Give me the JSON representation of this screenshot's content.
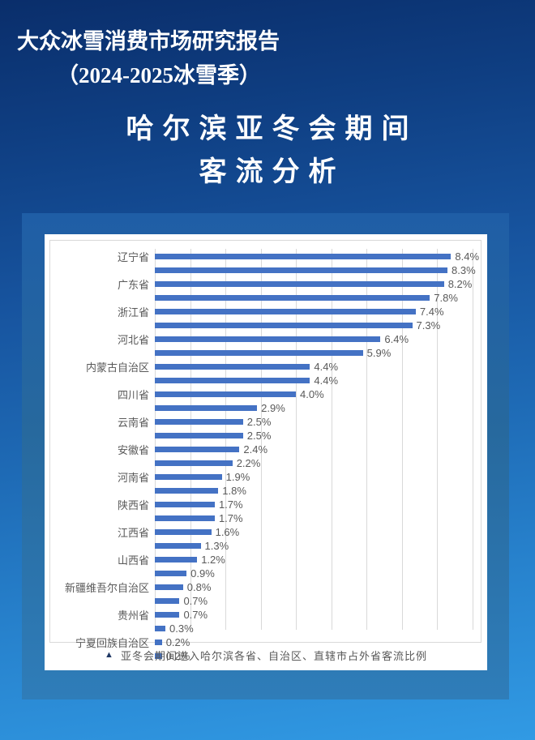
{
  "header": {
    "report_title": "大众冰雪消费市场研究报告",
    "report_subtitle": "（2024-2025冰雪季）",
    "main_title_line1": "哈尔滨亚冬会期间",
    "main_title_line2": "客流分析"
  },
  "chart_data": {
    "type": "bar",
    "orientation": "horizontal",
    "caption_marker": "▲",
    "caption": "亚冬会期间进入哈尔滨各省、自治区、直辖市占外省客流比例",
    "value_unit": "%",
    "xlim": [
      0,
      9.3
    ],
    "gridline_step_pct": 1,
    "gridline_count": 10,
    "category_labels_shown_every": 2,
    "bars": [
      {
        "label": "辽宁省",
        "value": 8.4,
        "display": "8.4%"
      },
      {
        "label": "",
        "value": 8.3,
        "display": "8.3%"
      },
      {
        "label": "广东省",
        "value": 8.2,
        "display": "8.2%"
      },
      {
        "label": "",
        "value": 7.8,
        "display": "7.8%"
      },
      {
        "label": "浙江省",
        "value": 7.4,
        "display": "7.4%"
      },
      {
        "label": "",
        "value": 7.3,
        "display": "7.3%"
      },
      {
        "label": "河北省",
        "value": 6.4,
        "display": "6.4%"
      },
      {
        "label": "",
        "value": 5.9,
        "display": "5.9%"
      },
      {
        "label": "内蒙古自治区",
        "value": 4.4,
        "display": "4.4%"
      },
      {
        "label": "",
        "value": 4.4,
        "display": "4.4%"
      },
      {
        "label": "四川省",
        "value": 4.0,
        "display": "4.0%"
      },
      {
        "label": "",
        "value": 2.9,
        "display": "2.9%"
      },
      {
        "label": "云南省",
        "value": 2.5,
        "display": "2.5%"
      },
      {
        "label": "",
        "value": 2.5,
        "display": "2.5%"
      },
      {
        "label": "安徽省",
        "value": 2.4,
        "display": "2.4%"
      },
      {
        "label": "",
        "value": 2.2,
        "display": "2.2%"
      },
      {
        "label": "河南省",
        "value": 1.9,
        "display": "1.9%"
      },
      {
        "label": "",
        "value": 1.8,
        "display": "1.8%"
      },
      {
        "label": "陕西省",
        "value": 1.7,
        "display": "1.7%"
      },
      {
        "label": "",
        "value": 1.7,
        "display": "1.7%"
      },
      {
        "label": "江西省",
        "value": 1.6,
        "display": "1.6%"
      },
      {
        "label": "",
        "value": 1.3,
        "display": "1.3%"
      },
      {
        "label": "山西省",
        "value": 1.2,
        "display": "1.2%"
      },
      {
        "label": "",
        "value": 0.9,
        "display": "0.9%"
      },
      {
        "label": "新疆维吾尔自治区",
        "value": 0.8,
        "display": "0.8%"
      },
      {
        "label": "",
        "value": 0.7,
        "display": "0.7%"
      },
      {
        "label": "贵州省",
        "value": 0.7,
        "display": "0.7%"
      },
      {
        "label": "",
        "value": 0.3,
        "display": "0.3%"
      },
      {
        "label": "宁夏回族自治区",
        "value": 0.2,
        "display": "0.2%"
      },
      {
        "label": "",
        "value": 0.2,
        "display": "0.2%"
      }
    ],
    "colors": {
      "bar": "#4472c4",
      "gridline": "#d9d9d9",
      "label_text": "#595959",
      "caption_marker": "#1f3864",
      "card_background": "#ffffff",
      "frame_blue_top": "#1f5ea6",
      "frame_blue_bottom": "#2f7db9",
      "page_gradient_top": "#0a2e6b",
      "page_gradient_bottom": "#319ae4",
      "title_text": "#ffffff"
    }
  }
}
